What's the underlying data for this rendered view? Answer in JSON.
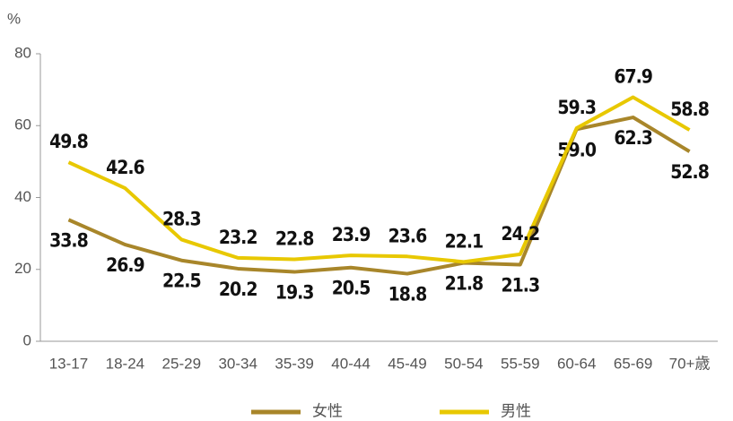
{
  "chart_data": {
    "type": "line",
    "ylabel": "%",
    "categories": [
      "13-17",
      "18-24",
      "25-29",
      "30-34",
      "35-39",
      "40-44",
      "45-49",
      "50-54",
      "55-59",
      "60-64",
      "65-69",
      "70+歳"
    ],
    "series": [
      {
        "name": "女性",
        "color": "#a8862a",
        "values": [
          33.8,
          26.9,
          22.5,
          20.2,
          19.3,
          20.5,
          18.8,
          21.8,
          21.3,
          59.0,
          62.3,
          52.8
        ],
        "value_labels": [
          "33.8",
          "26.9",
          "22.5",
          "20.2",
          "19.3",
          "20.5",
          "18.8",
          "21.8",
          "21.3",
          "59.0",
          "62.3",
          "52.8"
        ]
      },
      {
        "name": "男性",
        "color": "#e8c800",
        "values": [
          49.8,
          42.6,
          28.3,
          23.2,
          22.8,
          23.9,
          23.6,
          22.1,
          24.2,
          59.3,
          67.9,
          58.8
        ],
        "value_labels": [
          "49.8",
          "42.6",
          "28.3",
          "23.2",
          "22.8",
          "23.9",
          "23.6",
          "22.1",
          "24.2",
          "59.3",
          "67.9",
          "58.8"
        ]
      }
    ],
    "ylim": [
      0,
      80
    ],
    "yticks": [
      0,
      20,
      40,
      60,
      80
    ],
    "grid": false,
    "legend": "bottom"
  }
}
